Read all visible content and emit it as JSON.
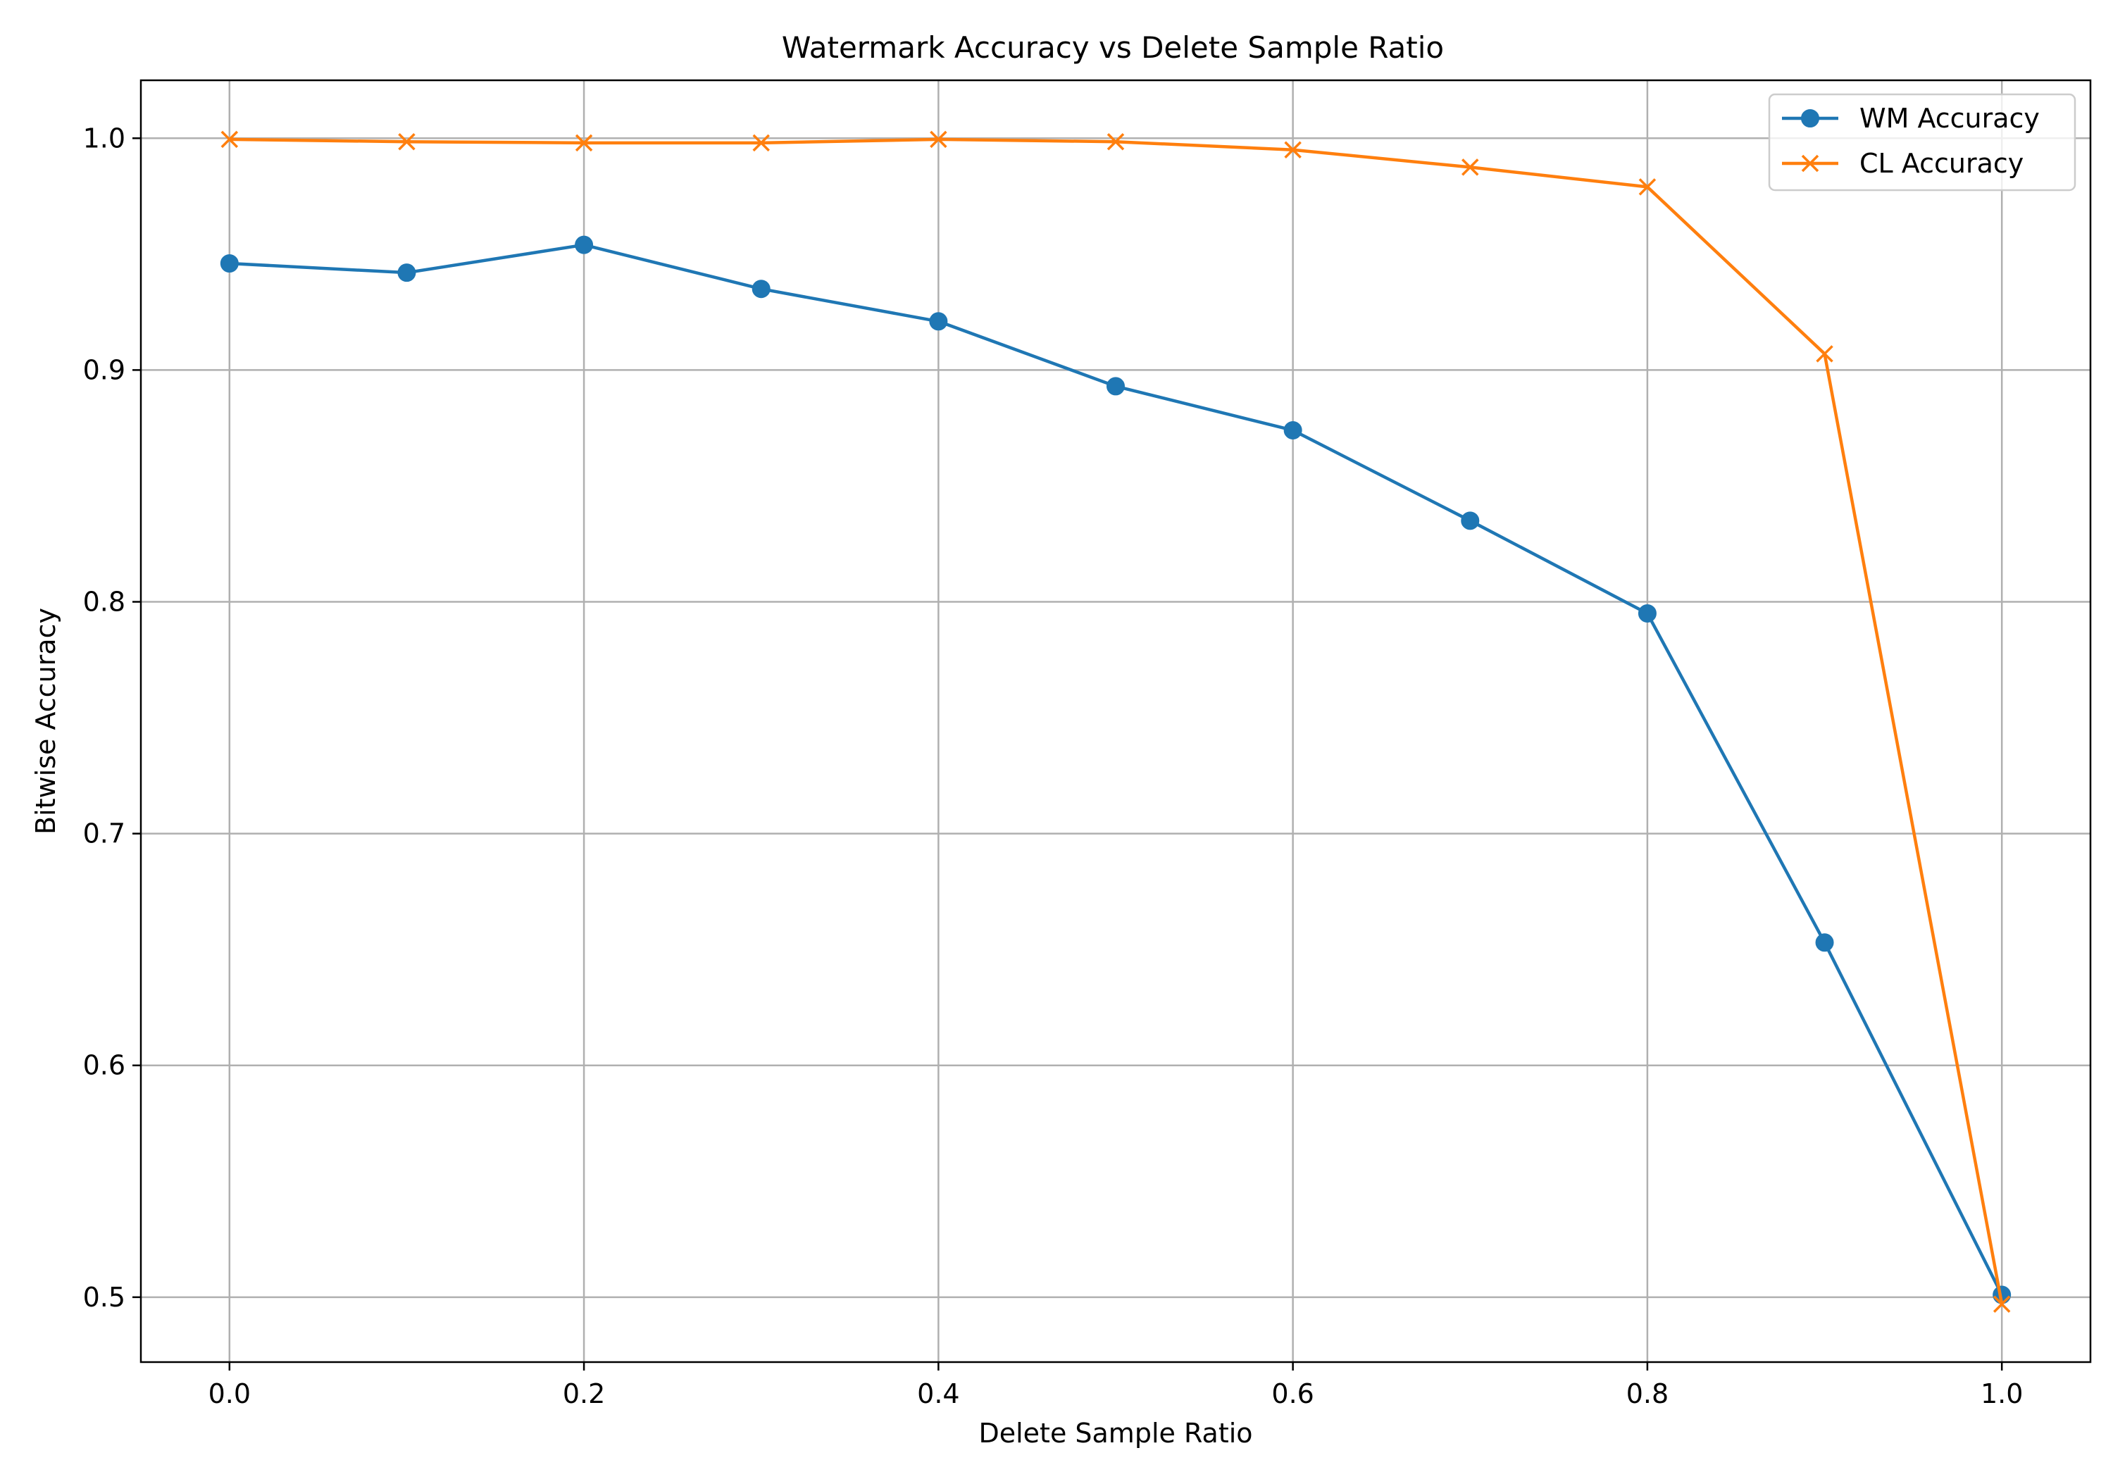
{
  "chart_data": {
    "type": "line",
    "title": "Watermark Accuracy vs Delete Sample Ratio",
    "xlabel": "Delete Sample Ratio",
    "ylabel": "Bitwise Accuracy",
    "xlim": [
      -0.05,
      1.05
    ],
    "ylim": [
      0.472,
      1.025
    ],
    "xticks": [
      0.0,
      0.2,
      0.4,
      0.6,
      0.8,
      1.0
    ],
    "xtick_labels": [
      "0.0",
      "0.2",
      "0.4",
      "0.6",
      "0.8",
      "1.0"
    ],
    "yticks": [
      0.5,
      0.6,
      0.7,
      0.8,
      0.9,
      1.0
    ],
    "ytick_labels": [
      "0.5",
      "0.6",
      "0.7",
      "0.8",
      "0.9",
      "1.0"
    ],
    "grid": true,
    "legend_position": "top-right",
    "x": [
      0.0,
      0.1,
      0.2,
      0.3,
      0.4,
      0.5,
      0.6,
      0.7,
      0.8,
      0.9,
      1.0
    ],
    "series": [
      {
        "name": "WM Accuracy",
        "color": "#1f77b4",
        "marker": "circle",
        "values": [
          0.946,
          0.942,
          0.954,
          0.935,
          0.921,
          0.893,
          0.874,
          0.835,
          0.795,
          0.653,
          0.501
        ]
      },
      {
        "name": "CL Accuracy",
        "color": "#ff7f0e",
        "marker": "x",
        "values": [
          0.9995,
          0.9985,
          0.998,
          0.998,
          0.9995,
          0.9985,
          0.995,
          0.9875,
          0.979,
          0.907,
          0.497
        ]
      }
    ]
  }
}
